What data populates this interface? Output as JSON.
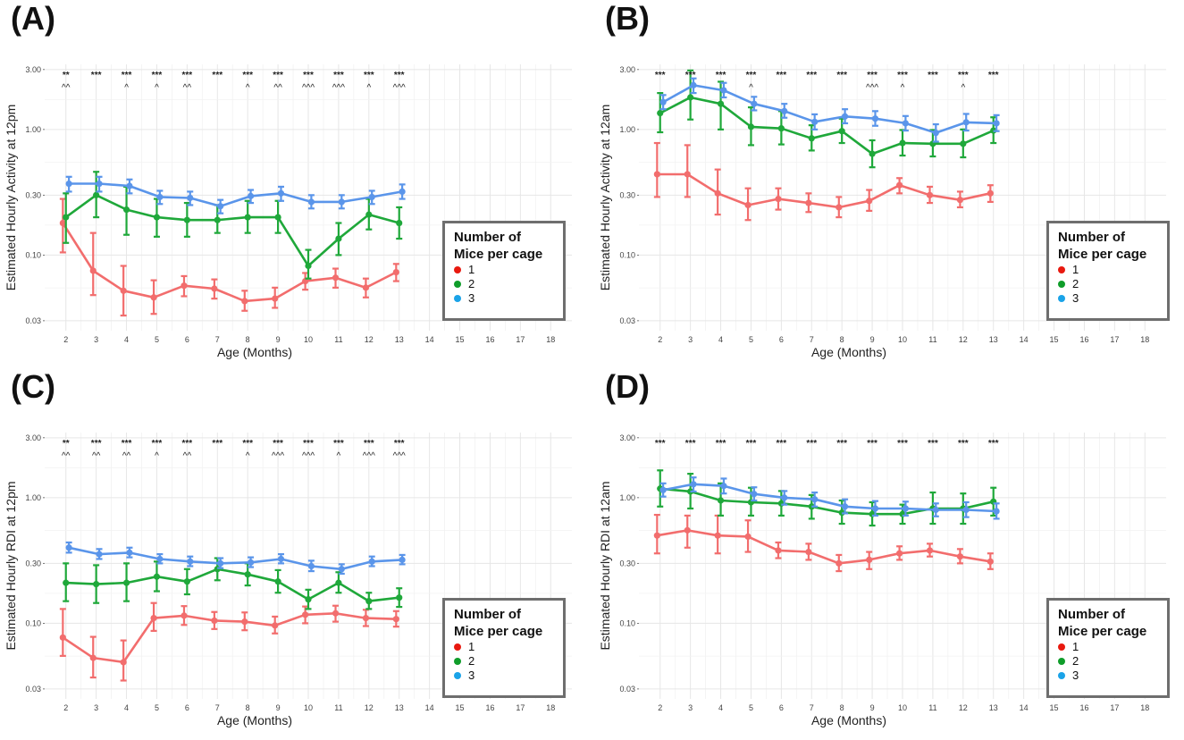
{
  "legend": {
    "title": "Number of Mice per cage",
    "items": [
      {
        "label": "1",
        "color": "#e8190f"
      },
      {
        "label": "2",
        "color": "#0f9d2a"
      },
      {
        "label": "3",
        "color": "#1aa3e8"
      }
    ]
  },
  "line_colors": {
    "1": "#f26d6d",
    "2": "#1fa83a",
    "3": "#5a95ea"
  },
  "chart_data": [
    {
      "panel": "(A)",
      "type": "line",
      "ylabel": "Estimated Hourly Activity at 12pm",
      "xlabel": "Age (Months)",
      "x_ticks": [
        "2",
        "3",
        "4",
        "5",
        "6",
        "7",
        "8",
        "9",
        "10",
        "11",
        "12",
        "13",
        "14",
        "15",
        "16",
        "17",
        "18"
      ],
      "y_ticks": [
        {
          "v": 0.03,
          "label": "0.03"
        },
        {
          "v": 0.1,
          "label": "0.10"
        },
        {
          "v": 0.3,
          "label": "0.30"
        },
        {
          "v": 1.0,
          "label": "1.00"
        },
        {
          "v": 3.0,
          "label": "3.00"
        }
      ],
      "ylim": [
        0.025,
        3.3
      ],
      "x": [
        2,
        3,
        4,
        5,
        6,
        7,
        8,
        9,
        10,
        11,
        12,
        13
      ],
      "sig_top": [
        "**",
        "***",
        "***",
        "***",
        "***",
        "***",
        "***",
        "***",
        "***",
        "***",
        "***",
        "***"
      ],
      "sig_bottom": [
        "^^",
        "",
        "^",
        "^",
        "^^",
        "",
        "^",
        "^^",
        "^^^",
        "^^^",
        "^",
        "^^^"
      ],
      "series": [
        {
          "name": "1",
          "values": [
            0.18,
            0.075,
            0.052,
            0.046,
            0.057,
            0.054,
            0.043,
            0.045,
            0.062,
            0.066,
            0.055,
            0.073
          ],
          "lower": [
            0.105,
            0.048,
            0.033,
            0.034,
            0.047,
            0.045,
            0.036,
            0.038,
            0.053,
            0.055,
            0.046,
            0.062
          ],
          "upper": [
            0.28,
            0.15,
            0.082,
            0.063,
            0.068,
            0.064,
            0.052,
            0.055,
            0.072,
            0.078,
            0.065,
            0.085
          ]
        },
        {
          "name": "2",
          "values": [
            0.2,
            0.3,
            0.23,
            0.2,
            0.19,
            0.19,
            0.2,
            0.2,
            0.082,
            0.135,
            0.21,
            0.18
          ],
          "lower": [
            0.125,
            0.2,
            0.145,
            0.14,
            0.14,
            0.15,
            0.15,
            0.15,
            0.065,
            0.1,
            0.16,
            0.135
          ],
          "upper": [
            0.31,
            0.46,
            0.35,
            0.28,
            0.26,
            0.25,
            0.27,
            0.27,
            0.11,
            0.18,
            0.28,
            0.24
          ]
        },
        {
          "name": "3",
          "values": [
            0.37,
            0.37,
            0.355,
            0.29,
            0.285,
            0.245,
            0.295,
            0.31,
            0.265,
            0.265,
            0.29,
            0.32
          ],
          "lower": [
            0.32,
            0.32,
            0.31,
            0.255,
            0.25,
            0.215,
            0.26,
            0.27,
            0.235,
            0.235,
            0.255,
            0.28
          ],
          "upper": [
            0.42,
            0.42,
            0.4,
            0.325,
            0.32,
            0.275,
            0.33,
            0.35,
            0.3,
            0.3,
            0.325,
            0.365
          ]
        }
      ]
    },
    {
      "panel": "(B)",
      "type": "line",
      "ylabel": "Estimated Hourly Activity at 12am",
      "xlabel": "Age (Months)",
      "x_ticks": [
        "2",
        "3",
        "4",
        "5",
        "6",
        "7",
        "8",
        "9",
        "10",
        "11",
        "12",
        "13",
        "14",
        "15",
        "16",
        "17",
        "18"
      ],
      "y_ticks": [
        {
          "v": 0.03,
          "label": "0.03"
        },
        {
          "v": 0.1,
          "label": "0.10"
        },
        {
          "v": 0.3,
          "label": "0.30"
        },
        {
          "v": 1.0,
          "label": "1.00"
        },
        {
          "v": 3.0,
          "label": "3.00"
        }
      ],
      "ylim": [
        0.025,
        3.3
      ],
      "x": [
        2,
        3,
        4,
        5,
        6,
        7,
        8,
        9,
        10,
        11,
        12,
        13
      ],
      "sig_top": [
        "***",
        "***",
        "***",
        "***",
        "***",
        "***",
        "***",
        "***",
        "***",
        "***",
        "***",
        "***"
      ],
      "sig_bottom": [
        "",
        "",
        "",
        "^",
        "",
        "",
        "",
        "^^^",
        "^",
        "",
        "^",
        ""
      ],
      "series": [
        {
          "name": "1",
          "values": [
            0.44,
            0.44,
            0.31,
            0.25,
            0.28,
            0.26,
            0.24,
            0.27,
            0.36,
            0.3,
            0.275,
            0.31
          ],
          "lower": [
            0.29,
            0.29,
            0.21,
            0.19,
            0.23,
            0.22,
            0.2,
            0.225,
            0.31,
            0.26,
            0.24,
            0.265
          ],
          "upper": [
            0.78,
            0.75,
            0.48,
            0.34,
            0.34,
            0.31,
            0.29,
            0.33,
            0.41,
            0.35,
            0.32,
            0.36
          ]
        },
        {
          "name": "2",
          "values": [
            1.35,
            1.8,
            1.6,
            1.05,
            1.02,
            0.85,
            0.97,
            0.64,
            0.78,
            0.77,
            0.77,
            0.98
          ],
          "lower": [
            0.95,
            1.2,
            1.0,
            0.75,
            0.76,
            0.68,
            0.78,
            0.5,
            0.62,
            0.61,
            0.6,
            0.78
          ],
          "upper": [
            1.95,
            2.95,
            2.4,
            1.5,
            1.4,
            1.08,
            1.22,
            0.82,
            0.99,
            0.99,
            1.0,
            1.25
          ]
        },
        {
          "name": "3",
          "values": [
            1.65,
            2.25,
            2.05,
            1.6,
            1.4,
            1.15,
            1.27,
            1.22,
            1.12,
            0.94,
            1.14,
            1.12
          ],
          "lower": [
            1.45,
            1.95,
            1.8,
            1.42,
            1.24,
            1.0,
            1.12,
            1.07,
            0.98,
            0.8,
            0.98,
            0.97
          ],
          "upper": [
            1.88,
            2.55,
            2.35,
            1.82,
            1.6,
            1.32,
            1.45,
            1.4,
            1.28,
            1.1,
            1.33,
            1.3
          ]
        }
      ]
    },
    {
      "panel": "(C)",
      "type": "line",
      "ylabel": "Estimated Hourly RDI at 12pm",
      "xlabel": "Age (Months)",
      "x_ticks": [
        "2",
        "3",
        "4",
        "5",
        "6",
        "7",
        "8",
        "9",
        "10",
        "11",
        "12",
        "13",
        "14",
        "15",
        "16",
        "17",
        "18"
      ],
      "y_ticks": [
        {
          "v": 0.03,
          "label": "0.03"
        },
        {
          "v": 0.1,
          "label": "0.10"
        },
        {
          "v": 0.3,
          "label": "0.30"
        },
        {
          "v": 1.0,
          "label": "1.00"
        },
        {
          "v": 3.0,
          "label": "3.00"
        }
      ],
      "ylim": [
        0.025,
        3.3
      ],
      "x": [
        2,
        3,
        4,
        5,
        6,
        7,
        8,
        9,
        10,
        11,
        12,
        13
      ],
      "sig_top": [
        "**",
        "***",
        "***",
        "***",
        "***",
        "***",
        "***",
        "***",
        "***",
        "***",
        "***",
        "***"
      ],
      "sig_bottom": [
        "^^",
        "^^",
        "^^",
        "^",
        "^^",
        "",
        "^",
        "^^^",
        "^^^",
        "^",
        "^^^",
        "^^^"
      ],
      "series": [
        {
          "name": "1",
          "values": [
            0.077,
            0.053,
            0.049,
            0.11,
            0.115,
            0.105,
            0.103,
            0.096,
            0.117,
            0.12,
            0.11,
            0.108
          ],
          "lower": [
            0.055,
            0.037,
            0.035,
            0.087,
            0.097,
            0.09,
            0.088,
            0.083,
            0.1,
            0.103,
            0.095,
            0.094
          ],
          "upper": [
            0.13,
            0.078,
            0.073,
            0.145,
            0.137,
            0.123,
            0.122,
            0.113,
            0.136,
            0.138,
            0.128,
            0.125
          ]
        },
        {
          "name": "2",
          "values": [
            0.21,
            0.205,
            0.21,
            0.235,
            0.215,
            0.27,
            0.245,
            0.215,
            0.155,
            0.21,
            0.15,
            0.16
          ],
          "lower": [
            0.15,
            0.145,
            0.15,
            0.18,
            0.17,
            0.22,
            0.2,
            0.175,
            0.13,
            0.175,
            0.13,
            0.135
          ],
          "upper": [
            0.3,
            0.29,
            0.3,
            0.31,
            0.27,
            0.33,
            0.3,
            0.265,
            0.185,
            0.255,
            0.175,
            0.19
          ]
        },
        {
          "name": "3",
          "values": [
            0.4,
            0.355,
            0.365,
            0.325,
            0.31,
            0.3,
            0.305,
            0.325,
            0.285,
            0.27,
            0.31,
            0.32
          ],
          "lower": [
            0.365,
            0.325,
            0.335,
            0.3,
            0.285,
            0.275,
            0.28,
            0.3,
            0.26,
            0.248,
            0.285,
            0.295
          ],
          "upper": [
            0.44,
            0.39,
            0.4,
            0.355,
            0.34,
            0.33,
            0.335,
            0.355,
            0.315,
            0.295,
            0.34,
            0.35
          ]
        }
      ]
    },
    {
      "panel": "(D)",
      "type": "line",
      "ylabel": "Estimated Hourly RDI at 12am",
      "xlabel": "Age (Months)",
      "x_ticks": [
        "2",
        "3",
        "4",
        "5",
        "6",
        "7",
        "8",
        "9",
        "10",
        "11",
        "12",
        "13",
        "14",
        "15",
        "16",
        "17",
        "18"
      ],
      "y_ticks": [
        {
          "v": 0.03,
          "label": "0.03"
        },
        {
          "v": 0.1,
          "label": "0.10"
        },
        {
          "v": 0.3,
          "label": "0.30"
        },
        {
          "v": 1.0,
          "label": "1.00"
        },
        {
          "v": 3.0,
          "label": "3.00"
        }
      ],
      "ylim": [
        0.025,
        3.3
      ],
      "x": [
        2,
        3,
        4,
        5,
        6,
        7,
        8,
        9,
        10,
        11,
        12,
        13
      ],
      "sig_top": [
        "***",
        "***",
        "***",
        "***",
        "***",
        "***",
        "***",
        "***",
        "***",
        "***",
        "***",
        "***"
      ],
      "sig_bottom": [
        "",
        "",
        "",
        "",
        "",
        "",
        "",
        "",
        "",
        "",
        "",
        ""
      ],
      "series": [
        {
          "name": "1",
          "values": [
            0.5,
            0.55,
            0.5,
            0.49,
            0.38,
            0.37,
            0.3,
            0.32,
            0.36,
            0.38,
            0.34,
            0.31
          ],
          "lower": [
            0.36,
            0.4,
            0.36,
            0.37,
            0.33,
            0.32,
            0.26,
            0.27,
            0.32,
            0.34,
            0.3,
            0.27
          ],
          "upper": [
            0.73,
            0.72,
            0.72,
            0.66,
            0.44,
            0.43,
            0.35,
            0.37,
            0.41,
            0.43,
            0.39,
            0.36
          ]
        },
        {
          "name": "2",
          "values": [
            1.18,
            1.12,
            0.95,
            0.92,
            0.9,
            0.85,
            0.76,
            0.74,
            0.74,
            0.82,
            0.82,
            0.93
          ],
          "lower": [
            0.85,
            0.82,
            0.72,
            0.72,
            0.72,
            0.68,
            0.62,
            0.6,
            0.62,
            0.62,
            0.62,
            0.72
          ],
          "upper": [
            1.65,
            1.55,
            1.3,
            1.2,
            1.13,
            1.05,
            0.95,
            0.92,
            0.88,
            1.1,
            1.08,
            1.2
          ]
        },
        {
          "name": "3",
          "values": [
            1.15,
            1.28,
            1.24,
            1.07,
            1.0,
            0.97,
            0.85,
            0.82,
            0.82,
            0.8,
            0.8,
            0.78
          ],
          "lower": [
            1.02,
            1.12,
            1.08,
            0.95,
            0.88,
            0.85,
            0.75,
            0.72,
            0.72,
            0.71,
            0.7,
            0.68
          ],
          "upper": [
            1.3,
            1.45,
            1.42,
            1.21,
            1.13,
            1.1,
            0.97,
            0.94,
            0.93,
            0.9,
            0.92,
            0.9
          ]
        }
      ]
    }
  ]
}
